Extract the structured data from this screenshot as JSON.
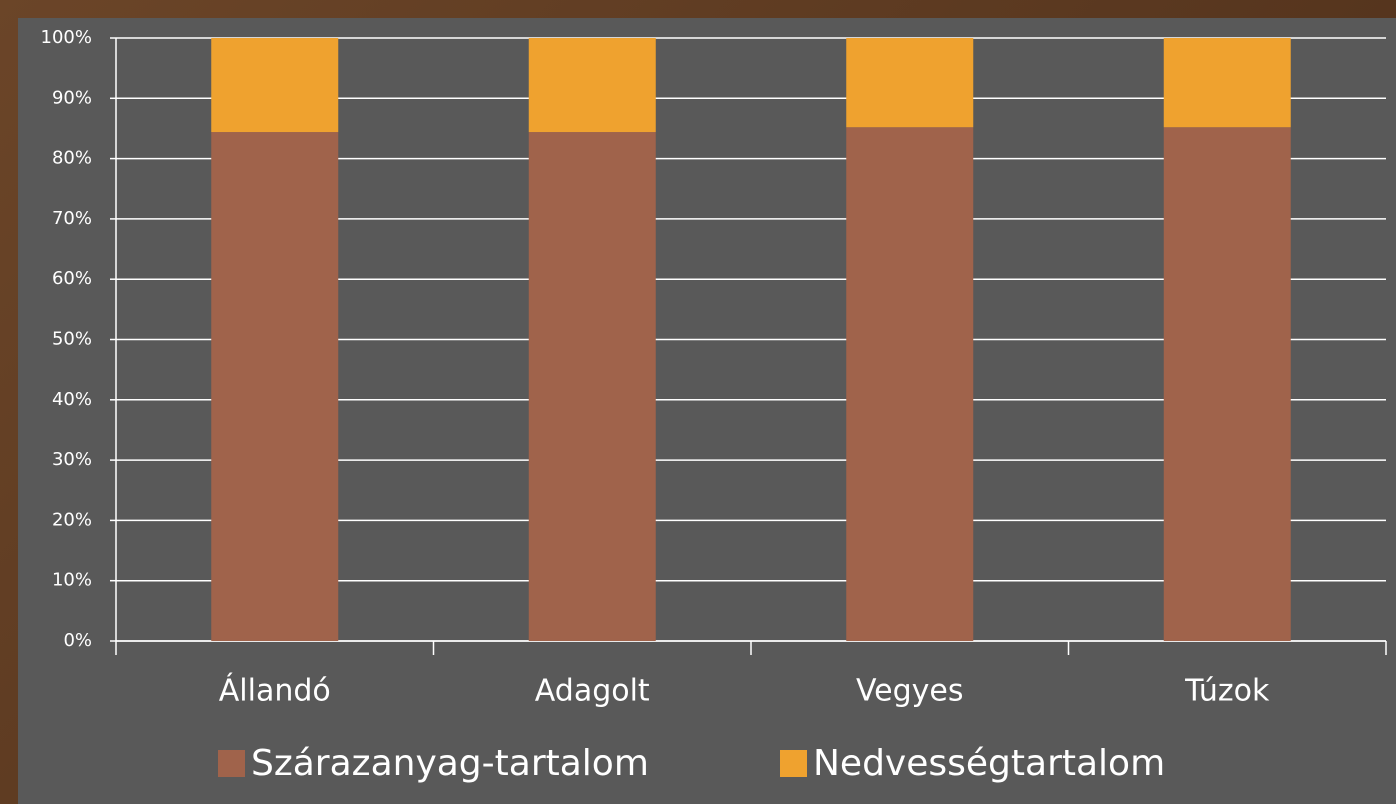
{
  "chart_data": {
    "type": "stacked_bar",
    "categories": [
      "Állandó",
      "Adagolt",
      "Vegyes",
      "Túzok"
    ],
    "series": [
      {
        "name": "Szárazanyag-tartalom",
        "color": "#a0634b",
        "values": [
          84.4,
          84.4,
          85.2,
          85.2
        ]
      },
      {
        "name": "Nedvességtartalom",
        "color": "#efa22f",
        "values": [
          15.6,
          15.6,
          14.8,
          14.8
        ]
      }
    ],
    "ylim": [
      0,
      100
    ],
    "yticks": [
      {
        "value": 0,
        "label": "0%"
      },
      {
        "value": 10,
        "label": "10%"
      },
      {
        "value": 20,
        "label": "20%"
      },
      {
        "value": 30,
        "label": "30%"
      },
      {
        "value": 40,
        "label": "40%"
      },
      {
        "value": 50,
        "label": "50%"
      },
      {
        "value": 60,
        "label": "60%"
      },
      {
        "value": 70,
        "label": "70%"
      },
      {
        "value": 80,
        "label": "80%"
      },
      {
        "value": 90,
        "label": "90%"
      },
      {
        "value": 100,
        "label": "100%"
      }
    ],
    "grid": true,
    "legend": "bottom"
  }
}
